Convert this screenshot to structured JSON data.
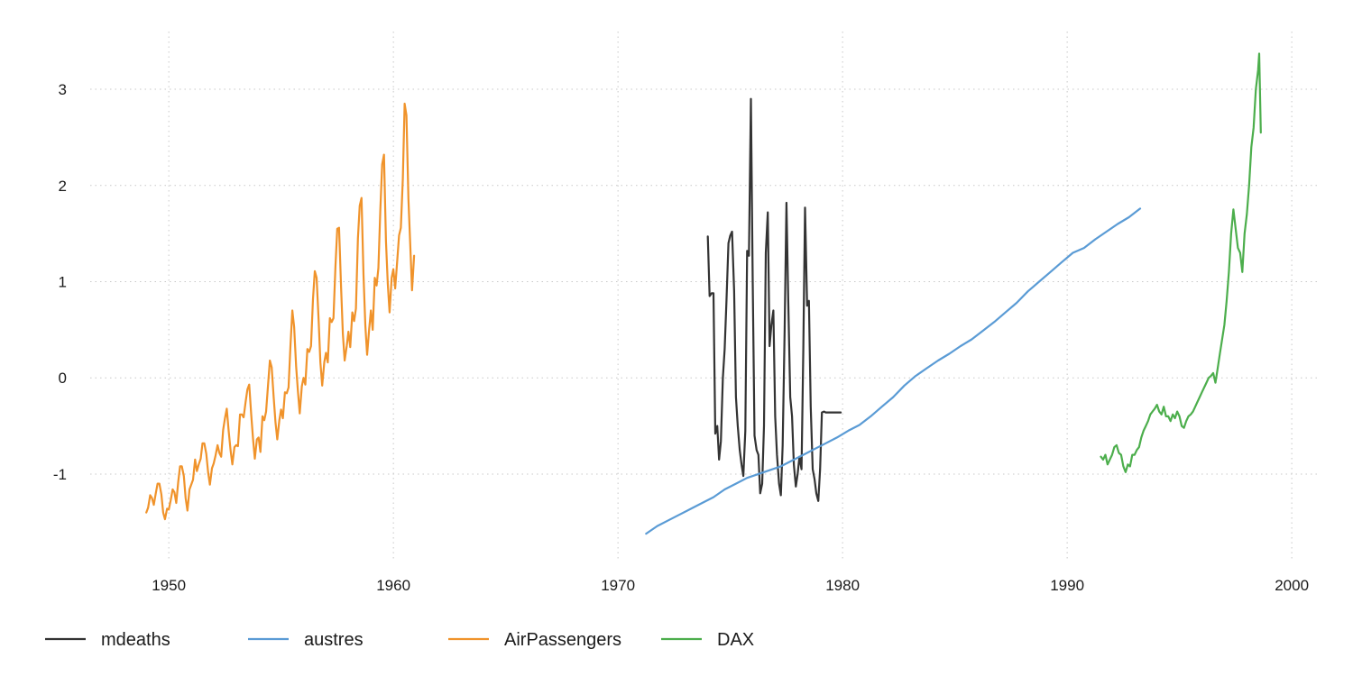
{
  "chart_data": {
    "type": "line",
    "title": "",
    "xlabel": "",
    "ylabel": "",
    "xlim": [
      1946.5,
      2001.2
    ],
    "ylim": [
      -1.9,
      3.6
    ],
    "grid": true,
    "legend_position": "bottom-left",
    "x_ticks": [
      1950,
      1960,
      1970,
      1980,
      1990,
      2000
    ],
    "x_tick_labels": [
      "1950",
      "1960",
      "1970",
      "1980",
      "1990",
      "2000"
    ],
    "y_ticks": [
      -1,
      0,
      1,
      2,
      3
    ],
    "y_tick_labels": [
      "-1",
      "0",
      "1",
      "2",
      "3"
    ],
    "series": [
      {
        "name": "mdeaths",
        "color": "#333333",
        "x": [
          1974.0,
          1974.08,
          1974.17,
          1974.25,
          1974.33,
          1974.42,
          1974.5,
          1974.58,
          1974.67,
          1974.75,
          1974.83,
          1974.92,
          1975.0,
          1975.08,
          1975.17,
          1975.25,
          1975.33,
          1975.42,
          1975.5,
          1975.58,
          1975.67,
          1975.75,
          1975.83,
          1975.92,
          1976.0,
          1976.08,
          1976.17,
          1976.25,
          1976.33,
          1976.42,
          1976.5,
          1976.58,
          1976.67,
          1976.75,
          1976.83,
          1976.92,
          1977.0,
          1977.08,
          1977.17,
          1977.25,
          1977.33,
          1977.42,
          1977.5,
          1977.58,
          1977.67,
          1977.75,
          1977.83,
          1977.92,
          1978.0,
          1978.08,
          1978.17,
          1978.25,
          1978.33,
          1978.42,
          1978.5,
          1978.58,
          1978.67,
          1978.75,
          1978.83,
          1978.92,
          1979.0,
          1979.08,
          1979.17,
          1979.25,
          1979.33,
          1979.42,
          1979.5,
          1979.58,
          1979.67,
          1979.75,
          1979.83,
          1979.92
        ],
        "values": [
          1.47,
          0.85,
          0.88,
          0.88,
          -0.58,
          -0.5,
          -0.85,
          -0.66,
          0.0,
          0.3,
          0.8,
          1.4,
          1.48,
          1.52,
          0.9,
          -0.2,
          -0.5,
          -0.75,
          -0.9,
          -1.02,
          -0.55,
          1.32,
          1.27,
          2.9,
          1.0,
          -0.6,
          -0.75,
          -0.8,
          -1.2,
          -1.1,
          -0.5,
          1.3,
          1.72,
          0.33,
          0.55,
          0.7,
          -0.4,
          -0.8,
          -1.1,
          -1.22,
          -0.7,
          0.5,
          1.82,
          0.8,
          -0.2,
          -0.4,
          -0.9,
          -1.13,
          -1.0,
          -0.82,
          -0.95,
          0.3,
          1.77,
          0.75,
          0.8,
          -0.3,
          -0.95,
          -1.05,
          -1.2,
          -1.28,
          -0.95,
          -0.36,
          -0.35,
          -0.36,
          -0.36,
          -0.36,
          -0.36,
          -0.36,
          -0.36,
          -0.36,
          -0.36,
          -0.36
        ]
      },
      {
        "name": "austres",
        "color": "#5a9bd5",
        "x": [
          1971.25,
          1971.75,
          1972.25,
          1972.75,
          1973.25,
          1973.75,
          1974.25,
          1974.75,
          1975.25,
          1975.75,
          1976.25,
          1976.75,
          1977.25,
          1977.75,
          1978.25,
          1978.75,
          1979.25,
          1979.75,
          1980.25,
          1980.75,
          1981.25,
          1981.75,
          1982.25,
          1982.75,
          1983.25,
          1983.75,
          1984.25,
          1984.75,
          1985.25,
          1985.75,
          1986.25,
          1986.75,
          1987.25,
          1987.75,
          1988.25,
          1988.75,
          1989.25,
          1989.75,
          1990.25,
          1990.75,
          1991.25,
          1991.75,
          1992.25,
          1992.75,
          1993.25
        ],
        "values": [
          -1.62,
          -1.54,
          -1.48,
          -1.42,
          -1.36,
          -1.3,
          -1.24,
          -1.16,
          -1.1,
          -1.04,
          -1.0,
          -0.96,
          -0.92,
          -0.86,
          -0.8,
          -0.74,
          -0.68,
          -0.62,
          -0.55,
          -0.49,
          -0.4,
          -0.3,
          -0.2,
          -0.08,
          0.02,
          0.1,
          0.18,
          0.25,
          0.33,
          0.4,
          0.49,
          0.58,
          0.68,
          0.78,
          0.9,
          1.0,
          1.1,
          1.2,
          1.3,
          1.35,
          1.44,
          1.52,
          1.6,
          1.67,
          1.76
        ]
      },
      {
        "name": "AirPassengers",
        "color": "#f0932b",
        "x": [
          1949.0,
          1949.08,
          1949.17,
          1949.25,
          1949.33,
          1949.42,
          1949.5,
          1949.58,
          1949.67,
          1949.75,
          1949.83,
          1949.92,
          1950.0,
          1950.08,
          1950.17,
          1950.25,
          1950.33,
          1950.42,
          1950.5,
          1950.58,
          1950.67,
          1950.75,
          1950.83,
          1950.92,
          1951.0,
          1951.08,
          1951.17,
          1951.25,
          1951.33,
          1951.42,
          1951.5,
          1951.58,
          1951.67,
          1951.75,
          1951.83,
          1951.92,
          1952.0,
          1952.08,
          1952.17,
          1952.25,
          1952.33,
          1952.42,
          1952.5,
          1952.58,
          1952.67,
          1952.75,
          1952.83,
          1952.92,
          1953.0,
          1953.08,
          1953.17,
          1953.25,
          1953.33,
          1953.42,
          1953.5,
          1953.58,
          1953.67,
          1953.75,
          1953.83,
          1953.92,
          1954.0,
          1954.08,
          1954.17,
          1954.25,
          1954.33,
          1954.42,
          1954.5,
          1954.58,
          1954.67,
          1954.75,
          1954.83,
          1954.92,
          1955.0,
          1955.08,
          1955.17,
          1955.25,
          1955.33,
          1955.42,
          1955.5,
          1955.58,
          1955.67,
          1955.75,
          1955.83,
          1955.92,
          1956.0,
          1956.08,
          1956.17,
          1956.25,
          1956.33,
          1956.42,
          1956.5,
          1956.58,
          1956.67,
          1956.75,
          1956.83,
          1956.92,
          1957.0,
          1957.08,
          1957.17,
          1957.25,
          1957.33,
          1957.42,
          1957.5,
          1957.58,
          1957.67,
          1957.75,
          1957.83,
          1957.92,
          1958.0,
          1958.08,
          1958.17,
          1958.25,
          1958.33,
          1958.42,
          1958.5,
          1958.58,
          1958.67,
          1958.75,
          1958.83,
          1958.92,
          1959.0,
          1959.08,
          1959.17,
          1959.25,
          1959.33,
          1959.42,
          1959.5,
          1959.58,
          1959.67,
          1959.75,
          1959.83,
          1959.92,
          1960.0,
          1960.08,
          1960.17,
          1960.25,
          1960.33,
          1960.42,
          1960.5,
          1960.58,
          1960.67,
          1960.75,
          1960.83,
          1960.92
        ],
        "values": [
          -1.4,
          -1.35,
          -1.22,
          -1.25,
          -1.32,
          -1.2,
          -1.1,
          -1.1,
          -1.21,
          -1.4,
          -1.47,
          -1.36,
          -1.37,
          -1.28,
          -1.16,
          -1.19,
          -1.3,
          -1.08,
          -0.92,
          -0.92,
          -1.02,
          -1.25,
          -1.38,
          -1.16,
          -1.11,
          -1.06,
          -0.85,
          -0.97,
          -0.9,
          -0.84,
          -0.68,
          -0.68,
          -0.79,
          -0.98,
          -1.11,
          -0.94,
          -0.89,
          -0.81,
          -0.7,
          -0.78,
          -0.82,
          -0.54,
          -0.42,
          -0.32,
          -0.56,
          -0.75,
          -0.9,
          -0.72,
          -0.7,
          -0.71,
          -0.38,
          -0.38,
          -0.41,
          -0.25,
          -0.12,
          -0.07,
          -0.38,
          -0.63,
          -0.84,
          -0.64,
          -0.62,
          -0.77,
          -0.4,
          -0.44,
          -0.35,
          -0.07,
          0.18,
          0.11,
          -0.2,
          -0.46,
          -0.64,
          -0.44,
          -0.33,
          -0.42,
          -0.15,
          -0.16,
          -0.1,
          0.35,
          0.7,
          0.53,
          0.12,
          -0.14,
          -0.37,
          -0.09,
          0.0,
          -0.07,
          0.3,
          0.27,
          0.33,
          0.82,
          1.11,
          1.04,
          0.61,
          0.16,
          -0.08,
          0.16,
          0.26,
          0.16,
          0.62,
          0.58,
          0.62,
          1.16,
          1.55,
          1.56,
          0.95,
          0.46,
          0.18,
          0.33,
          0.48,
          0.32,
          0.68,
          0.59,
          0.72,
          1.45,
          1.79,
          1.87,
          1.07,
          0.55,
          0.24,
          0.51,
          0.7,
          0.5,
          1.04,
          0.96,
          1.14,
          1.76,
          2.22,
          2.32,
          1.42,
          0.98,
          0.68,
          1.04,
          1.13,
          0.93,
          1.22,
          1.48,
          1.56,
          2.07,
          2.85,
          2.73,
          1.86,
          1.39,
          0.91,
          1.27
        ]
      },
      {
        "name": "DAX",
        "color": "#4cae4c",
        "x": [
          1991.5,
          1991.6,
          1991.7,
          1991.8,
          1991.9,
          1992.0,
          1992.1,
          1992.2,
          1992.3,
          1992.4,
          1992.5,
          1992.6,
          1992.7,
          1992.8,
          1992.9,
          1993.0,
          1993.1,
          1993.2,
          1993.3,
          1993.4,
          1993.5,
          1993.6,
          1993.7,
          1993.8,
          1993.9,
          1994.0,
          1994.1,
          1994.2,
          1994.3,
          1994.4,
          1994.5,
          1994.6,
          1994.7,
          1994.8,
          1994.9,
          1995.0,
          1995.1,
          1995.2,
          1995.3,
          1995.4,
          1995.5,
          1995.6,
          1995.7,
          1995.8,
          1995.9,
          1996.0,
          1996.1,
          1996.2,
          1996.3,
          1996.4,
          1996.5,
          1996.6,
          1996.7,
          1996.8,
          1996.9,
          1997.0,
          1997.1,
          1997.2,
          1997.3,
          1997.4,
          1997.5,
          1997.6,
          1997.7,
          1997.8,
          1997.9,
          1998.0,
          1998.1,
          1998.2,
          1998.3,
          1998.4,
          1998.5,
          1998.55,
          1998.62
        ],
        "values": [
          -0.82,
          -0.85,
          -0.8,
          -0.9,
          -0.85,
          -0.8,
          -0.72,
          -0.7,
          -0.78,
          -0.8,
          -0.92,
          -0.98,
          -0.9,
          -0.92,
          -0.8,
          -0.8,
          -0.75,
          -0.72,
          -0.62,
          -0.55,
          -0.5,
          -0.45,
          -0.38,
          -0.35,
          -0.32,
          -0.28,
          -0.35,
          -0.38,
          -0.3,
          -0.4,
          -0.4,
          -0.45,
          -0.38,
          -0.42,
          -0.35,
          -0.4,
          -0.5,
          -0.52,
          -0.45,
          -0.4,
          -0.38,
          -0.35,
          -0.3,
          -0.25,
          -0.2,
          -0.15,
          -0.1,
          -0.05,
          0.0,
          0.02,
          0.05,
          -0.05,
          0.1,
          0.25,
          0.4,
          0.55,
          0.8,
          1.1,
          1.5,
          1.75,
          1.55,
          1.35,
          1.3,
          1.1,
          1.5,
          1.7,
          2.0,
          2.4,
          2.6,
          3.0,
          3.2,
          3.37,
          2.55
        ]
      }
    ]
  }
}
